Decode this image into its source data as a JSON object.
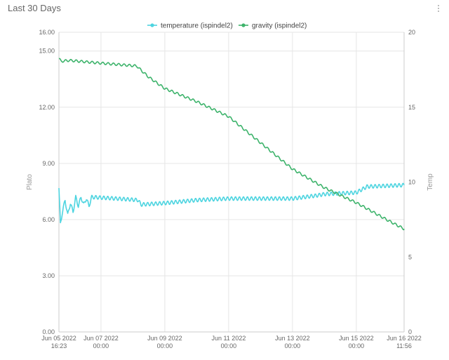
{
  "panel": {
    "title": "Last 30 Days"
  },
  "colors": {
    "temperature": "#4dd4e0",
    "gravity": "#3db36b",
    "grid": "#e6e6e6",
    "axis": "#cccccc"
  },
  "chart_data": {
    "type": "line",
    "legend": {
      "placement": "top-center"
    },
    "grid": true,
    "x_ticks": [
      {
        "date": "Jun 05 2022",
        "time": "16:23"
      },
      {
        "date": "Jun 07 2022",
        "time": "00:00"
      },
      {
        "date": "Jun 09 2022",
        "time": "00:00"
      },
      {
        "date": "Jun 11 2022",
        "time": "00:00"
      },
      {
        "date": "Jun 13 2022",
        "time": "00:00"
      },
      {
        "date": "Jun 15 2022",
        "time": "00:00"
      },
      {
        "date": "Jun 16 2022",
        "time": "11:56"
      }
    ],
    "y_left": {
      "label": "Plato",
      "ylim": [
        0,
        16
      ],
      "ticks": [
        "0.00",
        "3.00",
        "6.00",
        "9.00",
        "12.00",
        "15.00",
        "16.00"
      ]
    },
    "y_right": {
      "label": "Temp",
      "ylim": [
        0,
        20
      ],
      "ticks": [
        "0",
        "5",
        "10",
        "15",
        "20"
      ]
    },
    "series": [
      {
        "name": "temperature  (ispindel2)",
        "axis": "right",
        "points": [
          [
            "2022-06-05 16:23",
            9.6
          ],
          [
            "2022-06-05 17:30",
            7.2
          ],
          [
            "2022-06-05 19:00",
            8.0
          ],
          [
            "2022-06-05 21:00",
            8.8
          ],
          [
            "2022-06-05 23:00",
            7.8
          ],
          [
            "2022-06-06 01:00",
            8.6
          ],
          [
            "2022-06-06 03:00",
            8.0
          ],
          [
            "2022-06-06 05:00",
            9.0
          ],
          [
            "2022-06-06 07:00",
            8.4
          ],
          [
            "2022-06-06 09:00",
            9.0
          ],
          [
            "2022-06-06 11:00",
            8.5
          ],
          [
            "2022-06-06 13:00",
            8.9
          ],
          [
            "2022-06-06 15:00",
            8.4
          ],
          [
            "2022-06-06 17:00",
            9.0
          ],
          [
            "2022-06-07 12:00",
            8.9
          ],
          [
            "2022-06-08 04:00",
            8.8
          ],
          [
            "2022-06-08 06:00",
            8.5
          ],
          [
            "2022-06-09 00:00",
            8.6
          ],
          [
            "2022-06-10 00:00",
            8.8
          ],
          [
            "2022-06-11 00:00",
            8.9
          ],
          [
            "2022-06-12 00:00",
            8.9
          ],
          [
            "2022-06-13 00:00",
            8.9
          ],
          [
            "2022-06-13 18:00",
            9.1
          ],
          [
            "2022-06-14 00:00",
            9.2
          ],
          [
            "2022-06-15 00:00",
            9.3
          ],
          [
            "2022-06-15 08:00",
            9.7
          ],
          [
            "2022-06-16 11:56",
            9.8
          ]
        ]
      },
      {
        "name": "gravity  (ispindel2)",
        "axis": "left",
        "points": [
          [
            "2022-06-05 16:23",
            14.6
          ],
          [
            "2022-06-05 18:00",
            14.45
          ],
          [
            "2022-06-06 00:00",
            14.5
          ],
          [
            "2022-06-07 00:00",
            14.35
          ],
          [
            "2022-06-08 03:00",
            14.2
          ],
          [
            "2022-06-08 05:00",
            14.05
          ],
          [
            "2022-06-08 12:00",
            13.6
          ],
          [
            "2022-06-09 00:00",
            13.0
          ],
          [
            "2022-06-10 00:00",
            12.3
          ],
          [
            "2022-06-11 00:00",
            11.5
          ],
          [
            "2022-06-12 00:00",
            10.1
          ],
          [
            "2022-06-13 00:00",
            8.7
          ],
          [
            "2022-06-14 00:00",
            7.7
          ],
          [
            "2022-06-15 00:00",
            6.9
          ],
          [
            "2022-06-16 00:00",
            5.95
          ],
          [
            "2022-06-16 11:56",
            5.5
          ]
        ]
      }
    ]
  }
}
